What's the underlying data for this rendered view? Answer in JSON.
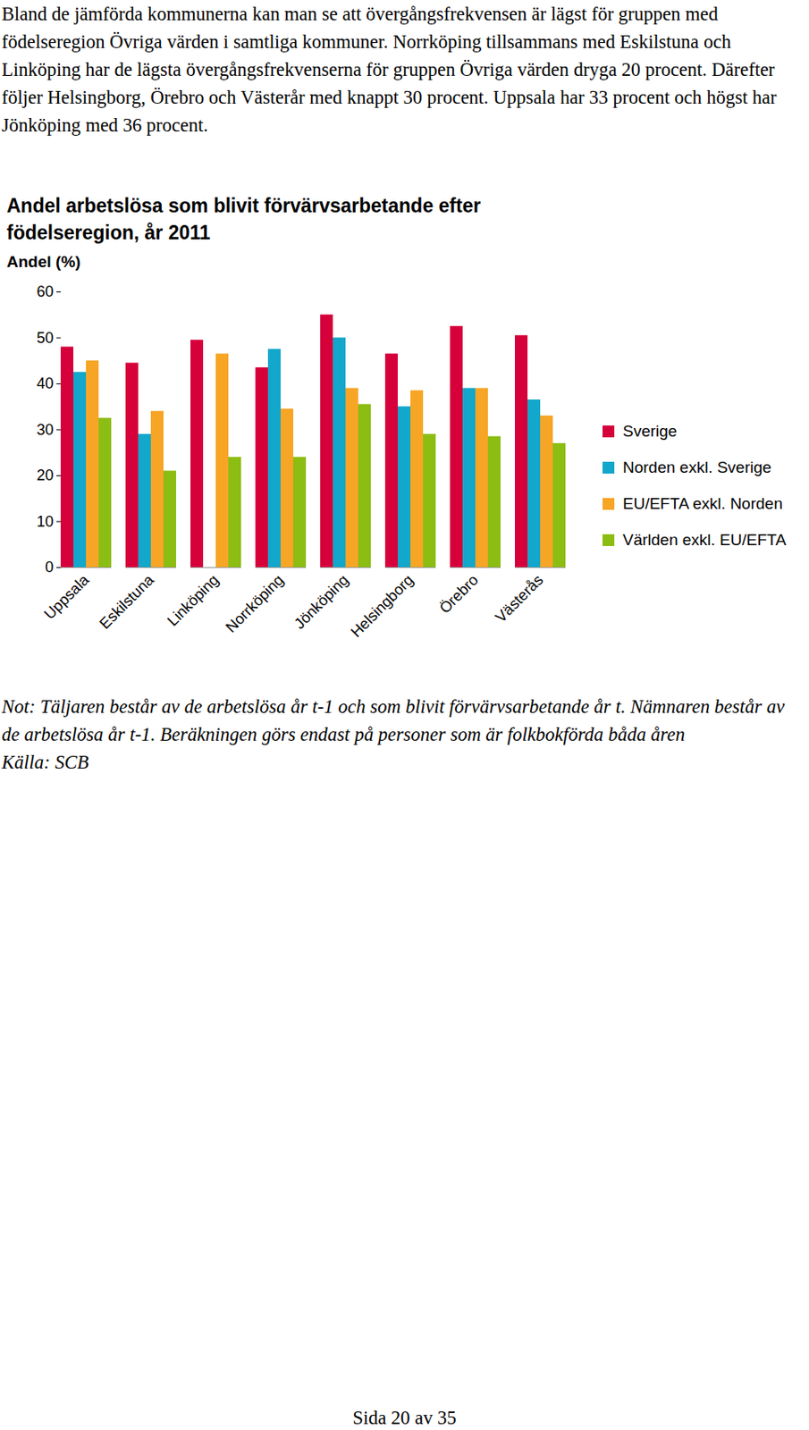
{
  "paragraph": "Bland de jämförda kommunerna kan man se att övergångsfrekvensen är lägst för gruppen med födelseregion Övriga värden i samtliga kommuner. Norrköping tillsammans med Eskilstuna och Linköping har de lägsta övergångsfrekvenserna för gruppen Övriga värden dryga 20 procent. Därefter följer Helsingborg, Örebro och Västerår med knappt 30 procent. Uppsala har 33 procent och högst har Jönköping med 36 procent.",
  "chart_data": {
    "type": "bar",
    "title": "Andel arbetslösa som blivit förvärvsarbetande efter födelseregion, år 2011",
    "y_label": "Andel (%)",
    "categories": [
      "Uppsala",
      "Eskilstuna",
      "Linköping",
      "Norrköping",
      "Jönköping",
      "Helsingborg",
      "Örebro",
      "Västerås"
    ],
    "series": [
      {
        "name": "Sverige",
        "color": "#d6003b",
        "values": [
          48,
          44.5,
          49.5,
          43.5,
          55,
          46.5,
          52.5,
          50.5
        ]
      },
      {
        "name": "Norden exkl. Sverige",
        "color": "#12a7cb",
        "values": [
          42.5,
          29,
          null,
          47.5,
          50,
          35,
          39,
          36.5
        ]
      },
      {
        "name": "EU/EFTA exkl. Norden",
        "color": "#f7a525",
        "values": [
          45,
          34,
          46.5,
          34.5,
          39,
          38.5,
          39,
          33
        ]
      },
      {
        "name": "Världen exkl. EU/EFTA",
        "color": "#8cbd12",
        "values": [
          32.5,
          21,
          24,
          24,
          35.5,
          29,
          28.5,
          27
        ]
      }
    ],
    "ylim": [
      0,
      60
    ],
    "yticks": [
      0,
      10,
      20,
      30,
      40,
      50,
      60
    ],
    "grid": false,
    "legend": "right"
  },
  "note": "Not: Täljaren består av de arbetslösa år t-1 och som blivit förvärvsarbetande år t. Nämnaren består av de arbetslösa år t-1. Beräkningen görs endast på personer som är folkbokförda båda åren",
  "source": "Källa: SCB",
  "footer": "Sida 20 av 35"
}
